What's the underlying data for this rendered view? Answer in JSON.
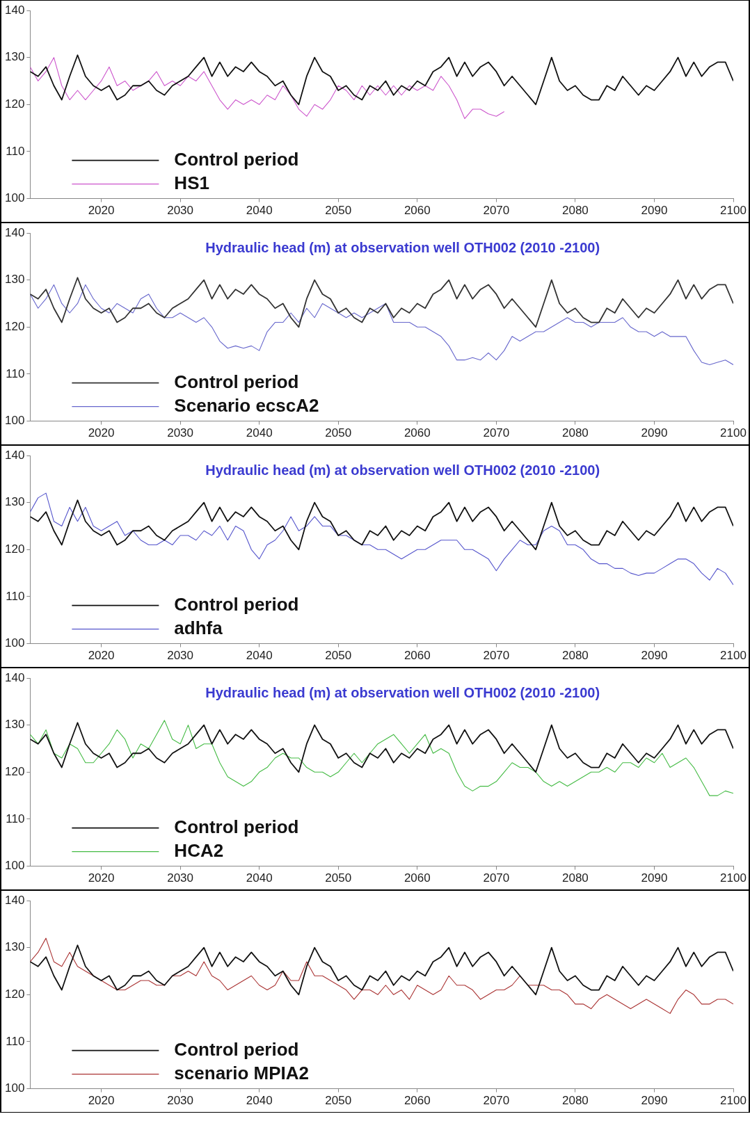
{
  "chart_data": [
    {
      "type": "line",
      "x": [
        2011,
        2012,
        2013,
        2014,
        2015,
        2016,
        2017,
        2018,
        2019,
        2020,
        2021,
        2022,
        2023,
        2024,
        2025,
        2026,
        2027,
        2028,
        2029,
        2030,
        2031,
        2032,
        2033,
        2034,
        2035,
        2036,
        2037,
        2038,
        2039,
        2040,
        2041,
        2042,
        2043,
        2044,
        2045,
        2046,
        2047,
        2048,
        2049,
        2050,
        2051,
        2052,
        2053,
        2054,
        2055,
        2056,
        2057,
        2058,
        2059,
        2060,
        2061,
        2062,
        2063,
        2064,
        2065,
        2066,
        2067,
        2068,
        2069,
        2070,
        2071,
        2072,
        2073,
        2074,
        2075,
        2076,
        2077,
        2078,
        2079,
        2080,
        2081,
        2082,
        2083,
        2084,
        2085,
        2086,
        2087,
        2088,
        2089,
        2090,
        2091,
        2092,
        2093,
        2094,
        2095,
        2096,
        2097,
        2098,
        2099,
        2100
      ],
      "xlim": [
        2011,
        2100
      ],
      "xticks": [
        2020,
        2030,
        2040,
        2050,
        2060,
        2070,
        2080,
        2090,
        2100
      ],
      "ylim": [
        100,
        140
      ],
      "yticks": [
        100,
        110,
        120,
        130,
        140
      ],
      "legend": "bottom left",
      "marker": "none",
      "series": [
        {
          "name": "Control period",
          "color": "#111111",
          "values": [
            127,
            126,
            128,
            124,
            121,
            126,
            130.5,
            126,
            124,
            123,
            124,
            121,
            122,
            124,
            124,
            125,
            123,
            122,
            124,
            125,
            126,
            128,
            130,
            126,
            129,
            126,
            128,
            127,
            129,
            127,
            126,
            124,
            125,
            122,
            120,
            126,
            130,
            127,
            126,
            123,
            124,
            122,
            121,
            124,
            123,
            125,
            122,
            124,
            123,
            125,
            124,
            127,
            128,
            130,
            126,
            129,
            126,
            128,
            129,
            127,
            124,
            126,
            124,
            122,
            120,
            125,
            130,
            125,
            123,
            124,
            122,
            121,
            121,
            124,
            123,
            126,
            124,
            122,
            124,
            123,
            125,
            127,
            130,
            126,
            129,
            126,
            128,
            129,
            129,
            125
          ]
        },
        {
          "name": "HS1",
          "color": "#cc55cc",
          "x": [
            2011,
            2012,
            2013,
            2014,
            2015,
            2016,
            2017,
            2018,
            2019,
            2020,
            2021,
            2022,
            2023,
            2024,
            2025,
            2026,
            2027,
            2028,
            2029,
            2030,
            2031,
            2032,
            2033,
            2034,
            2035,
            2036,
            2037,
            2038,
            2039,
            2040,
            2041,
            2042,
            2043,
            2044,
            2045,
            2046,
            2047,
            2048,
            2049,
            2050,
            2051,
            2052,
            2053,
            2054,
            2055,
            2056,
            2057,
            2058,
            2059,
            2060,
            2061,
            2062,
            2063,
            2064,
            2065,
            2066,
            2067,
            2068,
            2069,
            2070,
            2071
          ],
          "values": [
            128,
            125,
            127,
            130,
            124,
            121,
            123,
            121,
            123,
            125,
            128,
            124,
            125,
            123,
            124,
            125,
            127,
            124,
            125,
            124,
            126,
            125,
            127,
            124,
            121,
            119,
            121,
            120,
            121,
            120,
            122,
            121,
            124,
            122,
            119,
            117.5,
            120,
            119,
            121,
            124,
            123,
            121,
            124,
            122,
            124,
            122,
            124,
            122,
            124,
            123,
            124,
            123,
            126,
            124,
            121,
            117,
            119,
            119,
            118,
            117.5,
            118.5
          ]
        }
      ]
    },
    {
      "type": "line",
      "title": "Hydraulic head (m) at observation well OTH002 (2010 -2100)",
      "x": [
        2011,
        2012,
        2013,
        2014,
        2015,
        2016,
        2017,
        2018,
        2019,
        2020,
        2021,
        2022,
        2023,
        2024,
        2025,
        2026,
        2027,
        2028,
        2029,
        2030,
        2031,
        2032,
        2033,
        2034,
        2035,
        2036,
        2037,
        2038,
        2039,
        2040,
        2041,
        2042,
        2043,
        2044,
        2045,
        2046,
        2047,
        2048,
        2049,
        2050,
        2051,
        2052,
        2053,
        2054,
        2055,
        2056,
        2057,
        2058,
        2059,
        2060,
        2061,
        2062,
        2063,
        2064,
        2065,
        2066,
        2067,
        2068,
        2069,
        2070,
        2071,
        2072,
        2073,
        2074,
        2075,
        2076,
        2077,
        2078,
        2079,
        2080,
        2081,
        2082,
        2083,
        2084,
        2085,
        2086,
        2087,
        2088,
        2089,
        2090,
        2091,
        2092,
        2093,
        2094,
        2095,
        2096,
        2097,
        2098,
        2099,
        2100
      ],
      "xlim": [
        2011,
        2100
      ],
      "xticks": [
        2020,
        2030,
        2040,
        2050,
        2060,
        2070,
        2080,
        2090,
        2100
      ],
      "ylim": [
        100,
        140
      ],
      "yticks": [
        100,
        110,
        120,
        130,
        140
      ],
      "legend": "bottom left",
      "marker": "none",
      "series": [
        {
          "name": "Control period",
          "color": "#333333",
          "values": [
            127,
            126,
            128,
            124,
            121,
            126,
            130.5,
            126,
            124,
            123,
            124,
            121,
            122,
            124,
            124,
            125,
            123,
            122,
            124,
            125,
            126,
            128,
            130,
            126,
            129,
            126,
            128,
            127,
            129,
            127,
            126,
            124,
            125,
            122,
            120,
            126,
            130,
            127,
            126,
            123,
            124,
            122,
            121,
            124,
            123,
            125,
            122,
            124,
            123,
            125,
            124,
            127,
            128,
            130,
            126,
            129,
            126,
            128,
            129,
            127,
            124,
            126,
            124,
            122,
            120,
            125,
            130,
            125,
            123,
            124,
            122,
            121,
            121,
            124,
            123,
            126,
            124,
            122,
            124,
            123,
            125,
            127,
            130,
            126,
            129,
            126,
            128,
            129,
            129,
            125
          ]
        },
        {
          "name": "Scenario ecscA2",
          "color": "#6666cc",
          "values": [
            127,
            124,
            126,
            129,
            125,
            123,
            125,
            129,
            126,
            124,
            123,
            125,
            124,
            123,
            126,
            127,
            124,
            122,
            122,
            123,
            122,
            121,
            122,
            120,
            117,
            115.5,
            116,
            115.5,
            116,
            115,
            119,
            121,
            121,
            123,
            121,
            124,
            122,
            125,
            124,
            123,
            122,
            123,
            122,
            123,
            124,
            125,
            121,
            121,
            121,
            120,
            120,
            119,
            118,
            116,
            113,
            113,
            113.5,
            113,
            114.5,
            113,
            115,
            118,
            117,
            118,
            119,
            119,
            120,
            121,
            122,
            121,
            121,
            120,
            121,
            121,
            121,
            122,
            120,
            119,
            119,
            118,
            119,
            118,
            118,
            118,
            115,
            112.5,
            112,
            112.5,
            113,
            112
          ]
        }
      ]
    },
    {
      "type": "line",
      "title": "Hydraulic head (m) at observation well OTH002 (2010 -2100)",
      "x": [
        2011,
        2012,
        2013,
        2014,
        2015,
        2016,
        2017,
        2018,
        2019,
        2020,
        2021,
        2022,
        2023,
        2024,
        2025,
        2026,
        2027,
        2028,
        2029,
        2030,
        2031,
        2032,
        2033,
        2034,
        2035,
        2036,
        2037,
        2038,
        2039,
        2040,
        2041,
        2042,
        2043,
        2044,
        2045,
        2046,
        2047,
        2048,
        2049,
        2050,
        2051,
        2052,
        2053,
        2054,
        2055,
        2056,
        2057,
        2058,
        2059,
        2060,
        2061,
        2062,
        2063,
        2064,
        2065,
        2066,
        2067,
        2068,
        2069,
        2070,
        2071,
        2072,
        2073,
        2074,
        2075,
        2076,
        2077,
        2078,
        2079,
        2080,
        2081,
        2082,
        2083,
        2084,
        2085,
        2086,
        2087,
        2088,
        2089,
        2090,
        2091,
        2092,
        2093,
        2094,
        2095,
        2096,
        2097,
        2098,
        2099,
        2100
      ],
      "xlim": [
        2011,
        2100
      ],
      "xticks": [
        2020,
        2030,
        2040,
        2050,
        2060,
        2070,
        2080,
        2090,
        2100
      ],
      "ylim": [
        100,
        140
      ],
      "yticks": [
        100,
        110,
        120,
        130,
        140
      ],
      "legend": "bottom left",
      "marker": "none",
      "series": [
        {
          "name": "Control period",
          "color": "#111111",
          "values": [
            127,
            126,
            128,
            124,
            121,
            126,
            130.5,
            126,
            124,
            123,
            124,
            121,
            122,
            124,
            124,
            125,
            123,
            122,
            124,
            125,
            126,
            128,
            130,
            126,
            129,
            126,
            128,
            127,
            129,
            127,
            126,
            124,
            125,
            122,
            120,
            126,
            130,
            127,
            126,
            123,
            124,
            122,
            121,
            124,
            123,
            125,
            122,
            124,
            123,
            125,
            124,
            127,
            128,
            130,
            126,
            129,
            126,
            128,
            129,
            127,
            124,
            126,
            124,
            122,
            120,
            125,
            130,
            125,
            123,
            124,
            122,
            121,
            121,
            124,
            123,
            126,
            124,
            122,
            124,
            123,
            125,
            127,
            130,
            126,
            129,
            126,
            128,
            129,
            129,
            125
          ]
        },
        {
          "name": "adhfa",
          "color": "#5555cc",
          "values": [
            128,
            131,
            132,
            126,
            125,
            129,
            126,
            129,
            125,
            124,
            125,
            126,
            123,
            124,
            122,
            121,
            121,
            122,
            121,
            123,
            123,
            122,
            124,
            123,
            125,
            122,
            125,
            124,
            120,
            118,
            121,
            122,
            124,
            127,
            124,
            125,
            127,
            125,
            125,
            123,
            123,
            122,
            121,
            121,
            120,
            120,
            119,
            118,
            119,
            120,
            120,
            121,
            122,
            122,
            122,
            120,
            120,
            119,
            118,
            115.5,
            118,
            120,
            122,
            121,
            121,
            124,
            125,
            124,
            121,
            121,
            120,
            118,
            117,
            117,
            116,
            116,
            115,
            114.5,
            115,
            115,
            116,
            117,
            118,
            118,
            117,
            115,
            113.5,
            116,
            115,
            112.5
          ]
        }
      ]
    },
    {
      "type": "line",
      "title": "Hydraulic head (m) at observation well OTH002 (2010 -2100)",
      "x": [
        2011,
        2012,
        2013,
        2014,
        2015,
        2016,
        2017,
        2018,
        2019,
        2020,
        2021,
        2022,
        2023,
        2024,
        2025,
        2026,
        2027,
        2028,
        2029,
        2030,
        2031,
        2032,
        2033,
        2034,
        2035,
        2036,
        2037,
        2038,
        2039,
        2040,
        2041,
        2042,
        2043,
        2044,
        2045,
        2046,
        2047,
        2048,
        2049,
        2050,
        2051,
        2052,
        2053,
        2054,
        2055,
        2056,
        2057,
        2058,
        2059,
        2060,
        2061,
        2062,
        2063,
        2064,
        2065,
        2066,
        2067,
        2068,
        2069,
        2070,
        2071,
        2072,
        2073,
        2074,
        2075,
        2076,
        2077,
        2078,
        2079,
        2080,
        2081,
        2082,
        2083,
        2084,
        2085,
        2086,
        2087,
        2088,
        2089,
        2090,
        2091,
        2092,
        2093,
        2094,
        2095,
        2096,
        2097,
        2098,
        2099,
        2100
      ],
      "xlim": [
        2011,
        2100
      ],
      "xticks": [
        2020,
        2030,
        2040,
        2050,
        2060,
        2070,
        2080,
        2090,
        2100
      ],
      "ylim": [
        100,
        140
      ],
      "yticks": [
        100,
        110,
        120,
        130,
        140
      ],
      "legend": "bottom left",
      "marker": "none",
      "series": [
        {
          "name": "Control period",
          "color": "#111111",
          "values": [
            127,
            126,
            128,
            124,
            121,
            126,
            130.5,
            126,
            124,
            123,
            124,
            121,
            122,
            124,
            124,
            125,
            123,
            122,
            124,
            125,
            126,
            128,
            130,
            126,
            129,
            126,
            128,
            127,
            129,
            127,
            126,
            124,
            125,
            122,
            120,
            126,
            130,
            127,
            126,
            123,
            124,
            122,
            121,
            124,
            123,
            125,
            122,
            124,
            123,
            125,
            124,
            127,
            128,
            130,
            126,
            129,
            126,
            128,
            129,
            127,
            124,
            126,
            124,
            122,
            120,
            125,
            130,
            125,
            123,
            124,
            122,
            121,
            121,
            124,
            123,
            126,
            124,
            122,
            124,
            123,
            125,
            127,
            130,
            126,
            129,
            126,
            128,
            129,
            129,
            125
          ]
        },
        {
          "name": "HCA2",
          "color": "#44bb44",
          "values": [
            128,
            126,
            129,
            124,
            123,
            126,
            125,
            122,
            122,
            124,
            126,
            129,
            127,
            123,
            126,
            125,
            128,
            131,
            127,
            126,
            130,
            125,
            126,
            126,
            122,
            119,
            118,
            117,
            118,
            120,
            121,
            123,
            124,
            123,
            123,
            121,
            120,
            120,
            119,
            120,
            122,
            124,
            122,
            124,
            126,
            127,
            128,
            126,
            124,
            126,
            128,
            124,
            125,
            124,
            120,
            117,
            116,
            117,
            117,
            118,
            120,
            122,
            121,
            121,
            120,
            118,
            117,
            118,
            117,
            118,
            119,
            120,
            120,
            121,
            120,
            122,
            122,
            121,
            123,
            122,
            124,
            121,
            122,
            123,
            121,
            118,
            115,
            115,
            116,
            115.5
          ]
        }
      ]
    },
    {
      "type": "line",
      "x": [
        2011,
        2012,
        2013,
        2014,
        2015,
        2016,
        2017,
        2018,
        2019,
        2020,
        2021,
        2022,
        2023,
        2024,
        2025,
        2026,
        2027,
        2028,
        2029,
        2030,
        2031,
        2032,
        2033,
        2034,
        2035,
        2036,
        2037,
        2038,
        2039,
        2040,
        2041,
        2042,
        2043,
        2044,
        2045,
        2046,
        2047,
        2048,
        2049,
        2050,
        2051,
        2052,
        2053,
        2054,
        2055,
        2056,
        2057,
        2058,
        2059,
        2060,
        2061,
        2062,
        2063,
        2064,
        2065,
        2066,
        2067,
        2068,
        2069,
        2070,
        2071,
        2072,
        2073,
        2074,
        2075,
        2076,
        2077,
        2078,
        2079,
        2080,
        2081,
        2082,
        2083,
        2084,
        2085,
        2086,
        2087,
        2088,
        2089,
        2090,
        2091,
        2092,
        2093,
        2094,
        2095,
        2096,
        2097,
        2098,
        2099,
        2100
      ],
      "xlim": [
        2011,
        2100
      ],
      "xticks": [
        2020,
        2030,
        2040,
        2050,
        2060,
        2070,
        2080,
        2090,
        2100
      ],
      "ylim": [
        100,
        140
      ],
      "yticks": [
        100,
        110,
        120,
        130,
        140
      ],
      "legend": "bottom left",
      "marker": "none",
      "series": [
        {
          "name": "Control period",
          "color": "#111111",
          "values": [
            127,
            126,
            128,
            124,
            121,
            126,
            130.5,
            126,
            124,
            123,
            124,
            121,
            122,
            124,
            124,
            125,
            123,
            122,
            124,
            125,
            126,
            128,
            130,
            126,
            129,
            126,
            128,
            127,
            129,
            127,
            126,
            124,
            125,
            122,
            120,
            126,
            130,
            127,
            126,
            123,
            124,
            122,
            121,
            124,
            123,
            125,
            122,
            124,
            123,
            125,
            124,
            127,
            128,
            130,
            126,
            129,
            126,
            128,
            129,
            127,
            124,
            126,
            124,
            122,
            120,
            125,
            130,
            125,
            123,
            124,
            122,
            121,
            121,
            124,
            123,
            126,
            124,
            122,
            124,
            123,
            125,
            127,
            130,
            126,
            129,
            126,
            128,
            129,
            129,
            125
          ]
        },
        {
          "name": "scenario MPIA2",
          "color": "#aa3333",
          "values": [
            127,
            129,
            132,
            127,
            126,
            129,
            126,
            125,
            124,
            123,
            122,
            121,
            121,
            122,
            123,
            123,
            122,
            122,
            124,
            124,
            125,
            124,
            127,
            124,
            123,
            121,
            122,
            123,
            124,
            122,
            121,
            122,
            125,
            123,
            123,
            127,
            124,
            124,
            123,
            122,
            121,
            119,
            121,
            121,
            120,
            122,
            120,
            121,
            119,
            122,
            121,
            120,
            121,
            124,
            122,
            122,
            121,
            119,
            120,
            121,
            121,
            122,
            124,
            122,
            122,
            122,
            121,
            121,
            120,
            118,
            118,
            117,
            119,
            120,
            119,
            118,
            117,
            118,
            119,
            118,
            117,
            116,
            119,
            121,
            120,
            118,
            118,
            119,
            119,
            118
          ]
        }
      ]
    }
  ]
}
